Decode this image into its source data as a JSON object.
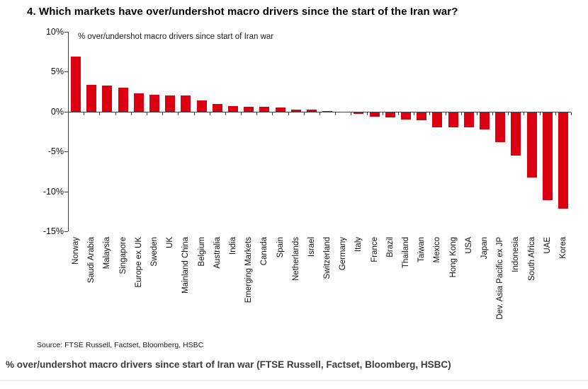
{
  "title": "4. Which markets have over/undershot macro drivers since the start of the Iran war?",
  "legend_label": "% over/undershot macro drivers since start of Iran war",
  "source": "Source: FTSE Russell, Factset, Bloomberg, HSBC",
  "caption": "% over/undershot macro drivers since start of Iran war (FTSE Russell, Factset, Bloomberg, HSBC)",
  "colors": {
    "bar": "#db0011",
    "axis": "#404040",
    "title": "#000000",
    "caption": "#3d3d3d"
  },
  "chart_data": {
    "type": "bar",
    "title": "% over/undershot macro drivers since start of Iran war",
    "xlabel": "",
    "ylabel": "% over/undershot macro drivers",
    "ylim": [
      -15,
      10
    ],
    "yticks": [
      10,
      5,
      0,
      -5,
      -10,
      -15
    ],
    "ytick_labels": [
      "10%",
      "5%",
      "0%",
      "-5%",
      "-10%",
      "-15%"
    ],
    "grid": false,
    "legend_position": "top-left-inside",
    "categories": [
      "Norway",
      "Saudi Arabia",
      "Malaysia",
      "Singapore",
      "Europe ex UK",
      "Sweden",
      "UK",
      "Mainland China",
      "Belgium",
      "Australia",
      "India",
      "Emerging Markets",
      "Canada",
      "Spain",
      "Netherlands",
      "Israel",
      "Switzerland",
      "Germany",
      "Italy",
      "France",
      "Brazil",
      "Thailand",
      "Taiwan",
      "Mexico",
      "Hong Kong",
      "USA",
      "Japan",
      "Dev. Asia Pacific ex JP",
      "Indonesia",
      "South Africa",
      "UAE",
      "Korea"
    ],
    "values": [
      6.9,
      3.4,
      3.3,
      3.0,
      2.3,
      2.1,
      2.0,
      2.0,
      1.4,
      1.0,
      0.7,
      0.6,
      0.6,
      0.5,
      0.3,
      0.3,
      0.1,
      0.0,
      -0.2,
      -0.5,
      -0.6,
      -0.9,
      -1.0,
      -1.9,
      -1.9,
      -1.9,
      -2.1,
      -3.7,
      -5.4,
      -8.2,
      -11.0,
      -12.1
    ]
  }
}
